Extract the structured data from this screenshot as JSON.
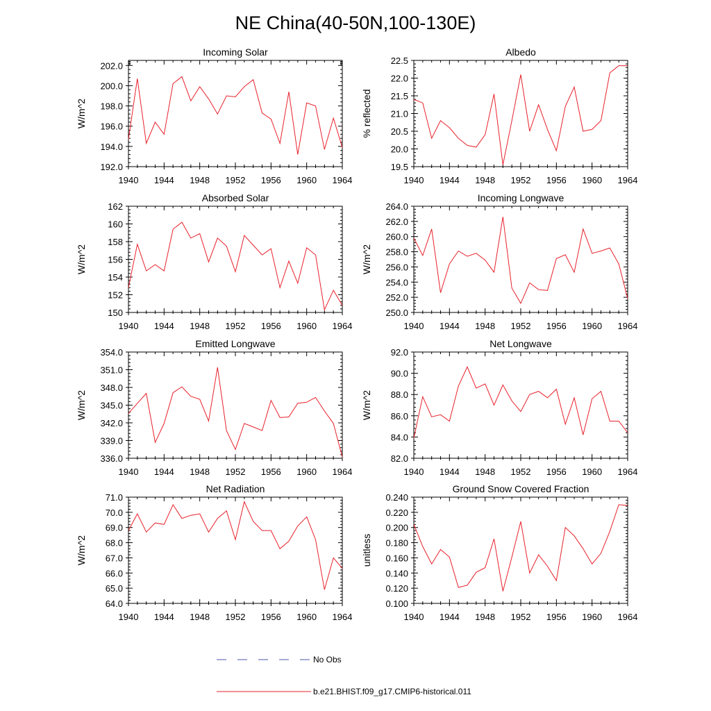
{
  "figure": {
    "title": "NE China(40-50N,100-130E)",
    "legend": {
      "placement": "bottom-center",
      "entries": [
        {
          "label": "No Obs",
          "style": "dashed",
          "color": "#4a5aa8"
        },
        {
          "label": "b.e21.BHIST.f09_g17.CMIP6-historical.011",
          "style": "solid",
          "color": "#e8202a"
        }
      ]
    }
  },
  "chart_data": [
    {
      "type": "line",
      "title": "Incoming Solar",
      "ylabel": "W/m^2",
      "xlim": [
        1940,
        1964
      ],
      "ylim": [
        192.0,
        202.5
      ],
      "xticks": [
        "1940",
        "1944",
        "1948",
        "1952",
        "1956",
        "1960",
        "1964"
      ],
      "yticks": [
        {
          "v": 192.0,
          "t": "192.0"
        },
        {
          "v": 194.0,
          "t": "194.0"
        },
        {
          "v": 196.0,
          "t": "196.0"
        },
        {
          "v": 198.0,
          "t": "198.0"
        },
        {
          "v": 200.0,
          "t": "200.0"
        },
        {
          "v": 202.0,
          "t": "202.0"
        }
      ],
      "series": [
        {
          "name": "b.e21.BHIST.f09_g17.CMIP6-historical.011",
          "color": "#e8202a",
          "x": [
            1940,
            1941,
            1942,
            1943,
            1944,
            1945,
            1946,
            1947,
            1948,
            1949,
            1950,
            1951,
            1952,
            1953,
            1954,
            1955,
            1956,
            1957,
            1958,
            1959,
            1960,
            1961,
            1962,
            1963,
            1964
          ],
          "values": [
            194.7,
            200.7,
            194.3,
            196.4,
            195.2,
            200.2,
            200.9,
            198.5,
            199.9,
            198.7,
            197.2,
            199.0,
            198.9,
            199.9,
            200.6,
            197.3,
            196.7,
            194.3,
            199.4,
            193.2,
            198.3,
            198.0,
            193.7,
            196.8,
            193.9
          ]
        }
      ]
    },
    {
      "type": "line",
      "title": "Albedo",
      "ylabel": "% reflected",
      "xlim": [
        1940,
        1964
      ],
      "ylim": [
        19.5,
        22.5
      ],
      "xticks": [
        "1940",
        "1944",
        "1948",
        "1952",
        "1956",
        "1960",
        "1964"
      ],
      "yticks": [
        {
          "v": 19.5,
          "t": "19.5"
        },
        {
          "v": 20.0,
          "t": "20.0"
        },
        {
          "v": 20.5,
          "t": "20.5"
        },
        {
          "v": 21.0,
          "t": "21.0"
        },
        {
          "v": 21.5,
          "t": "21.5"
        },
        {
          "v": 22.0,
          "t": "22.0"
        },
        {
          "v": 22.5,
          "t": "22.5"
        }
      ],
      "series": [
        {
          "name": "b.e21.BHIST.f09_g17.CMIP6-historical.011",
          "color": "#e8202a",
          "x": [
            1940,
            1941,
            1942,
            1943,
            1944,
            1945,
            1946,
            1947,
            1948,
            1949,
            1950,
            1951,
            1952,
            1953,
            1954,
            1955,
            1956,
            1957,
            1958,
            1959,
            1960,
            1961,
            1962,
            1963,
            1964
          ],
          "values": [
            21.4,
            21.3,
            20.3,
            20.8,
            20.6,
            20.3,
            20.1,
            20.05,
            20.4,
            21.55,
            19.55,
            20.8,
            22.1,
            20.5,
            21.25,
            20.55,
            19.95,
            21.2,
            21.75,
            20.5,
            20.55,
            20.8,
            22.15,
            22.35,
            22.35
          ]
        }
      ]
    },
    {
      "type": "line",
      "title": "Absorbed Solar",
      "ylabel": "W/m^2",
      "xlim": [
        1940,
        1964
      ],
      "ylim": [
        150,
        162
      ],
      "xticks": [
        "1940",
        "1944",
        "1948",
        "1952",
        "1956",
        "1960",
        "1964"
      ],
      "yticks": [
        {
          "v": 150,
          "t": "150"
        },
        {
          "v": 152,
          "t": "152"
        },
        {
          "v": 154,
          "t": "154"
        },
        {
          "v": 156,
          "t": "156"
        },
        {
          "v": 158,
          "t": "158"
        },
        {
          "v": 160,
          "t": "160"
        },
        {
          "v": 162,
          "t": "162"
        }
      ],
      "series": [
        {
          "name": "b.e21.BHIST.f09_g17.CMIP6-historical.011",
          "color": "#e8202a",
          "x": [
            1940,
            1941,
            1942,
            1943,
            1944,
            1945,
            1946,
            1947,
            1948,
            1949,
            1950,
            1951,
            1952,
            1953,
            1954,
            1955,
            1956,
            1957,
            1958,
            1959,
            1960,
            1961,
            1962,
            1963,
            1964
          ],
          "values": [
            152.8,
            157.7,
            154.7,
            155.4,
            154.7,
            159.4,
            160.2,
            158.4,
            158.9,
            155.7,
            158.4,
            157.5,
            154.6,
            158.7,
            157.6,
            156.5,
            157.2,
            152.8,
            155.8,
            153.3,
            157.3,
            156.5,
            150.3,
            152.5,
            150.8
          ]
        }
      ]
    },
    {
      "type": "line",
      "title": "Incoming Longwave",
      "ylabel": "W/m^2",
      "xlim": [
        1940,
        1964
      ],
      "ylim": [
        250.0,
        264.0
      ],
      "xticks": [
        "1940",
        "1944",
        "1948",
        "1952",
        "1956",
        "1960",
        "1964"
      ],
      "yticks": [
        {
          "v": 250.0,
          "t": "250.0"
        },
        {
          "v": 252.0,
          "t": "252.0"
        },
        {
          "v": 254.0,
          "t": "254.0"
        },
        {
          "v": 256.0,
          "t": "256.0"
        },
        {
          "v": 258.0,
          "t": "258.0"
        },
        {
          "v": 260.0,
          "t": "260.0"
        },
        {
          "v": 262.0,
          "t": "262.0"
        },
        {
          "v": 264.0,
          "t": "264.0"
        }
      ],
      "series": [
        {
          "name": "b.e21.BHIST.f09_g17.CMIP6-historical.011",
          "color": "#e8202a",
          "x": [
            1940,
            1941,
            1942,
            1943,
            1944,
            1945,
            1946,
            1947,
            1948,
            1949,
            1950,
            1951,
            1952,
            1953,
            1954,
            1955,
            1956,
            1957,
            1958,
            1959,
            1960,
            1961,
            1962,
            1963,
            1964
          ],
          "values": [
            259.8,
            257.5,
            261.0,
            252.6,
            256.4,
            258.1,
            257.4,
            257.8,
            256.9,
            255.3,
            262.6,
            253.2,
            251.2,
            253.9,
            253.0,
            252.9,
            257.1,
            257.6,
            255.3,
            261.0,
            257.8,
            258.1,
            258.5,
            256.4,
            251.8
          ]
        }
      ]
    },
    {
      "type": "line",
      "title": "Emitted Longwave",
      "ylabel": "W/m^2",
      "xlim": [
        1940,
        1964
      ],
      "ylim": [
        336.0,
        354.0
      ],
      "xticks": [
        "1940",
        "1944",
        "1948",
        "1952",
        "1956",
        "1960",
        "1964"
      ],
      "yticks": [
        {
          "v": 336.0,
          "t": "336.0"
        },
        {
          "v": 339.0,
          "t": "339.0"
        },
        {
          "v": 342.0,
          "t": "342.0"
        },
        {
          "v": 345.0,
          "t": "345.0"
        },
        {
          "v": 348.0,
          "t": "348.0"
        },
        {
          "v": 351.0,
          "t": "351.0"
        },
        {
          "v": 354.0,
          "t": "354.0"
        }
      ],
      "series": [
        {
          "name": "b.e21.BHIST.f09_g17.CMIP6-historical.011",
          "color": "#e8202a",
          "x": [
            1940,
            1941,
            1942,
            1943,
            1944,
            1945,
            1946,
            1947,
            1948,
            1949,
            1950,
            1951,
            1952,
            1953,
            1954,
            1955,
            1956,
            1957,
            1958,
            1959,
            1960,
            1961,
            1962,
            1963,
            1964
          ],
          "values": [
            343.6,
            345.3,
            347.0,
            338.7,
            341.9,
            347.1,
            348.1,
            346.5,
            346.0,
            342.3,
            351.4,
            340.7,
            337.5,
            341.9,
            341.3,
            340.7,
            345.8,
            342.9,
            343.0,
            345.3,
            345.5,
            346.3,
            344.0,
            341.9,
            336.2
          ]
        }
      ]
    },
    {
      "type": "line",
      "title": "Net Longwave",
      "ylabel": "W/m^2",
      "xlim": [
        1940,
        1964
      ],
      "ylim": [
        82.0,
        92.0
      ],
      "xticks": [
        "1940",
        "1944",
        "1948",
        "1952",
        "1956",
        "1960",
        "1964"
      ],
      "yticks": [
        {
          "v": 82.0,
          "t": "82.0"
        },
        {
          "v": 84.0,
          "t": "84.0"
        },
        {
          "v": 86.0,
          "t": "86.0"
        },
        {
          "v": 88.0,
          "t": "88.0"
        },
        {
          "v": 90.0,
          "t": "90.0"
        },
        {
          "v": 92.0,
          "t": "92.0"
        }
      ],
      "series": [
        {
          "name": "b.e21.BHIST.f09_g17.CMIP6-historical.011",
          "color": "#e8202a",
          "x": [
            1940,
            1941,
            1942,
            1943,
            1944,
            1945,
            1946,
            1947,
            1948,
            1949,
            1950,
            1951,
            1952,
            1953,
            1954,
            1955,
            1956,
            1957,
            1958,
            1959,
            1960,
            1961,
            1962,
            1963,
            1964
          ],
          "values": [
            83.9,
            87.8,
            85.9,
            86.1,
            85.5,
            88.8,
            90.6,
            88.6,
            89.0,
            87.0,
            88.9,
            87.4,
            86.4,
            88.0,
            88.3,
            87.7,
            88.5,
            85.2,
            87.7,
            84.2,
            87.6,
            88.3,
            85.5,
            85.5,
            84.4
          ]
        }
      ]
    },
    {
      "type": "line",
      "title": "Net Radiation",
      "ylabel": "W/m^2",
      "xlim": [
        1940,
        1964
      ],
      "ylim": [
        64.0,
        71.0
      ],
      "xticks": [
        "1940",
        "1944",
        "1948",
        "1952",
        "1956",
        "1960",
        "1964"
      ],
      "yticks": [
        {
          "v": 64.0,
          "t": "64.0"
        },
        {
          "v": 65.0,
          "t": "65.0"
        },
        {
          "v": 66.0,
          "t": "66.0"
        },
        {
          "v": 67.0,
          "t": "67.0"
        },
        {
          "v": 68.0,
          "t": "68.0"
        },
        {
          "v": 69.0,
          "t": "69.0"
        },
        {
          "v": 70.0,
          "t": "70.0"
        },
        {
          "v": 71.0,
          "t": "71.0"
        }
      ],
      "series": [
        {
          "name": "b.e21.BHIST.f09_g17.CMIP6-historical.011",
          "color": "#e8202a",
          "x": [
            1940,
            1941,
            1942,
            1943,
            1944,
            1945,
            1946,
            1947,
            1948,
            1949,
            1950,
            1951,
            1952,
            1953,
            1954,
            1955,
            1956,
            1957,
            1958,
            1959,
            1960,
            1961,
            1962,
            1963,
            1964
          ],
          "values": [
            68.8,
            69.9,
            68.7,
            69.3,
            69.2,
            70.5,
            69.6,
            69.8,
            69.9,
            68.7,
            69.6,
            70.1,
            68.2,
            70.7,
            69.4,
            68.8,
            68.8,
            67.6,
            68.1,
            69.1,
            69.7,
            68.2,
            64.9,
            67.0,
            66.3
          ]
        }
      ]
    },
    {
      "type": "line",
      "title": "Ground Snow Covered Fraction",
      "ylabel": "unitless",
      "xlim": [
        1940,
        1964
      ],
      "ylim": [
        0.1,
        0.24
      ],
      "xticks": [
        "1940",
        "1944",
        "1948",
        "1952",
        "1956",
        "1960",
        "1964"
      ],
      "yticks": [
        {
          "v": 0.1,
          "t": "0.100"
        },
        {
          "v": 0.12,
          "t": "0.120"
        },
        {
          "v": 0.14,
          "t": "0.140"
        },
        {
          "v": 0.16,
          "t": "0.160"
        },
        {
          "v": 0.18,
          "t": "0.180"
        },
        {
          "v": 0.2,
          "t": "0.200"
        },
        {
          "v": 0.22,
          "t": "0.220"
        },
        {
          "v": 0.24,
          "t": "0.240"
        }
      ],
      "series": [
        {
          "name": "b.e21.BHIST.f09_g17.CMIP6-historical.011",
          "color": "#e8202a",
          "x": [
            1940,
            1941,
            1942,
            1943,
            1944,
            1945,
            1946,
            1947,
            1948,
            1949,
            1950,
            1951,
            1952,
            1953,
            1954,
            1955,
            1956,
            1957,
            1958,
            1959,
            1960,
            1961,
            1962,
            1963,
            1964
          ],
          "values": [
            0.204,
            0.175,
            0.152,
            0.171,
            0.161,
            0.121,
            0.124,
            0.141,
            0.147,
            0.185,
            0.116,
            0.161,
            0.208,
            0.14,
            0.164,
            0.149,
            0.13,
            0.2,
            0.189,
            0.172,
            0.152,
            0.166,
            0.195,
            0.23,
            0.229
          ]
        }
      ]
    }
  ]
}
